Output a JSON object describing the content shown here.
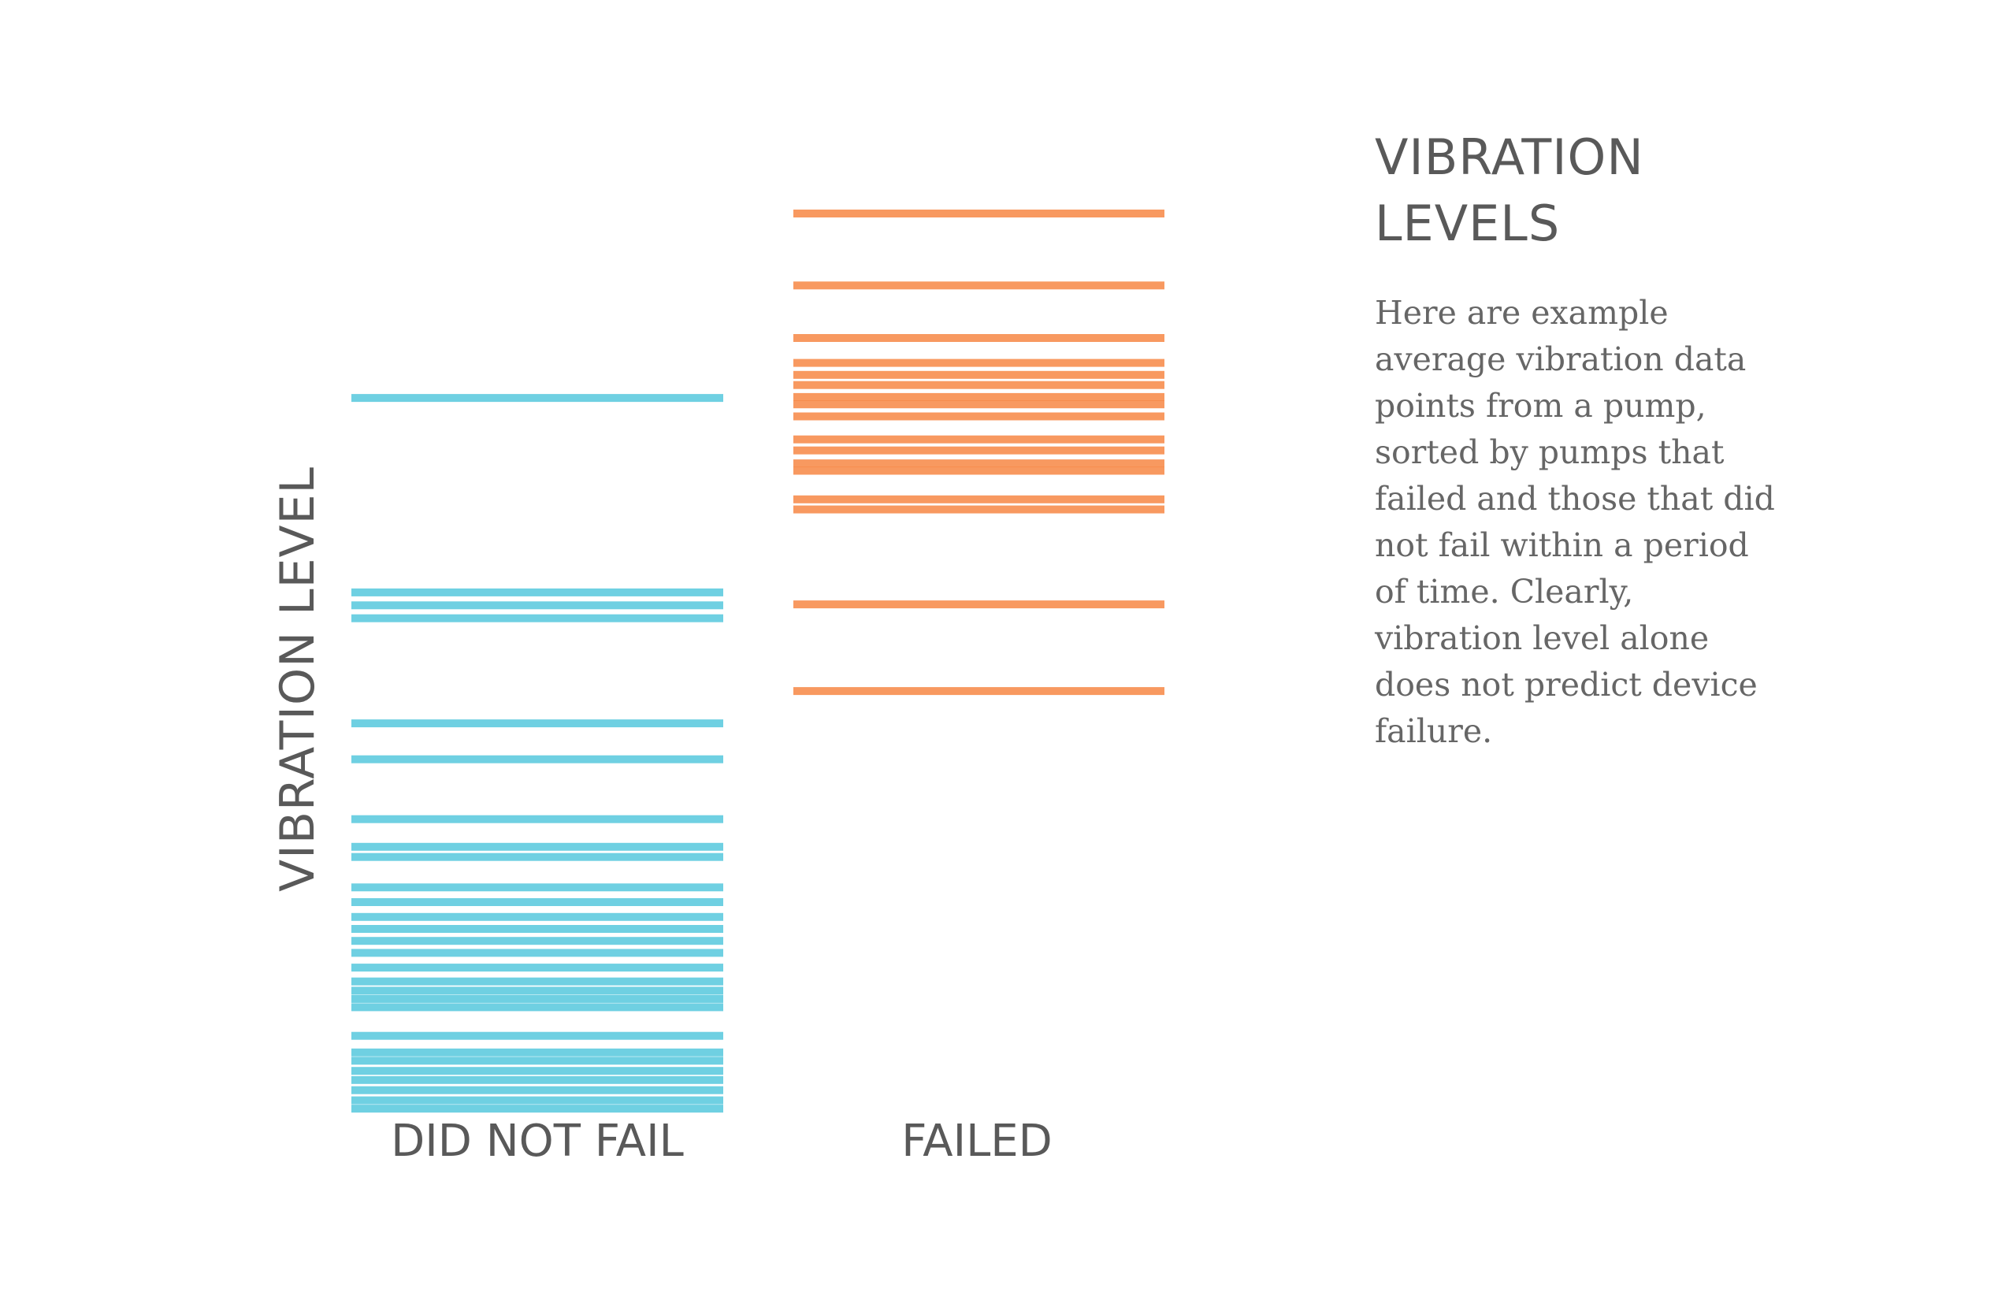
{
  "chart_data": {
    "type": "strip",
    "title": "",
    "xlabel": "",
    "ylabel": "VIBRATION LEVEL",
    "ylim": [
      0,
      100
    ],
    "grid": false,
    "categories": [
      "DID NOT FAIL",
      "FAILED"
    ],
    "series": [
      {
        "category": "DID NOT FAIL",
        "color": "#4fc6dc",
        "values": [
          73.5,
          52.4,
          51.0,
          49.6,
          38.2,
          34.3,
          27.8,
          24.8,
          23.7,
          20.4,
          18.8,
          17.2,
          15.9,
          14.6,
          13.3,
          11.7,
          10.2,
          9.2,
          8.3,
          7.4,
          4.3,
          2.5,
          1.6,
          0.5,
          -0.5,
          -1.6,
          -2.7,
          -3.6
        ]
      },
      {
        "category": "FAILED",
        "color": "#f7823d",
        "values": [
          93.5,
          85.7,
          80.0,
          77.3,
          76.0,
          74.9,
          73.6,
          72.8,
          71.5,
          69.0,
          67.8,
          66.4,
          65.6,
          62.5,
          61.4,
          51.1,
          41.7
        ]
      }
    ]
  },
  "panel": {
    "title_line1": "VIBRATION",
    "title_line2": "LEVELS",
    "body": "Here are example average vibration data points from a pump, sorted by pumps that failed and those that did not fail within a period of time. Clearly, vibration level alone does not predict device failure."
  }
}
